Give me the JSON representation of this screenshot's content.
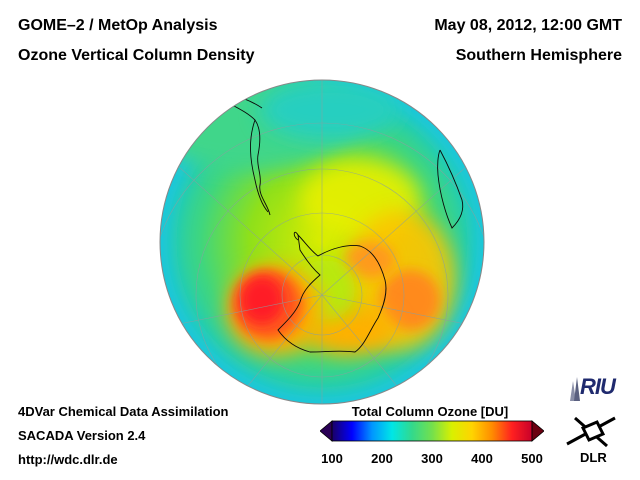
{
  "header": {
    "title_line1": "GOME–2 / MetOp Analysis",
    "title_line2": "Ozone Vertical Column Density",
    "datetime": "May 08, 2012, 12:00 GMT",
    "region": "Southern Hemisphere"
  },
  "footer": {
    "line1": "4DVar Chemical Data Assimilation",
    "line2": "SACADA Version 2.4",
    "line3": "http://wdc.dlr.de"
  },
  "colorbar": {
    "title": "Total Column Ozone [DU]",
    "ticks": [
      "100",
      "200",
      "300",
      "400",
      "500"
    ],
    "range": [
      100,
      500
    ],
    "colors": [
      "#1a0066",
      "#0000ff",
      "#0096ff",
      "#00e6e6",
      "#33d98c",
      "#73e04d",
      "#d9f000",
      "#ffd400",
      "#ff8c00",
      "#ff2020",
      "#c8002a"
    ]
  },
  "logos": {
    "riu": "RIU",
    "dlr": "DLR"
  }
}
